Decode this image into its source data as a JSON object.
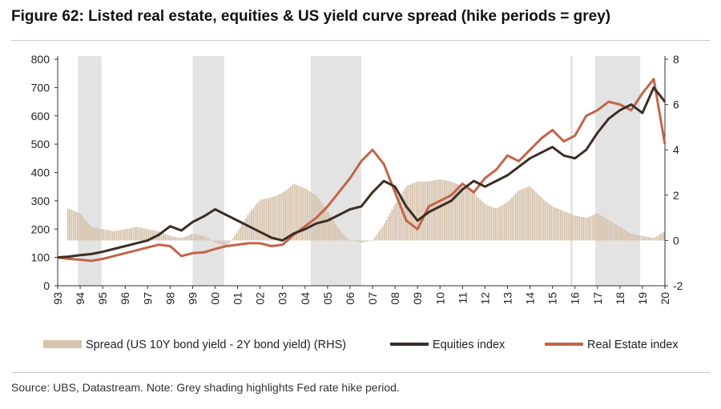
{
  "figure_title": "Figure 62: Listed real estate, equities & US yield curve spread (hike periods = grey)",
  "source_note": "Source:  UBS, Datastream. Note: Grey shading highlights Fed rate hike period.",
  "colors": {
    "spread": "#d6c3ad",
    "equities": "#3d2e26",
    "equities_light": "#d2b5a3",
    "real_estate": "#c1654a",
    "hike_shading": "#e3e3e3"
  },
  "chart_data": {
    "type": "line",
    "title": "Figure 62: Listed real estate, equities & US yield curve spread (hike periods = grey)",
    "xlabel": "",
    "ylabel": "",
    "x_tick_labels": [
      "93",
      "94",
      "95",
      "96",
      "97",
      "98",
      "99",
      "00",
      "01",
      "02",
      "03",
      "04",
      "05",
      "06",
      "07",
      "08",
      "09",
      "10",
      "11",
      "12",
      "13",
      "14",
      "15",
      "16",
      "17",
      "18",
      "19",
      "20"
    ],
    "xlim": [
      1993.0,
      2020.0
    ],
    "y_left": {
      "lim": [
        0,
        800
      ],
      "ticks": [
        0,
        100,
        200,
        300,
        400,
        500,
        600,
        700,
        800
      ]
    },
    "y_right": {
      "lim": [
        -2,
        8
      ],
      "ticks": [
        -2,
        0,
        2,
        4,
        6,
        8
      ],
      "label": "RHS"
    },
    "hike_periods": [
      [
        1993.9,
        1994.95
      ],
      [
        1999.0,
        2000.4
      ],
      [
        2004.25,
        2006.5
      ],
      [
        2015.8,
        2015.9
      ],
      [
        2016.9,
        2018.9
      ]
    ],
    "series": [
      {
        "name": "Spread (US 10Y bond yield - 2Y bond yield) (RHS)",
        "type": "bar",
        "axis": "right",
        "x": [
          1993.0,
          1993.5,
          1994.0,
          1994.5,
          1995.0,
          1995.5,
          1996.0,
          1996.5,
          1997.0,
          1997.5,
          1998.0,
          1998.5,
          1999.0,
          1999.5,
          2000.0,
          2000.5,
          2001.0,
          2001.5,
          2002.0,
          2002.5,
          2003.0,
          2003.5,
          2004.0,
          2004.5,
          2005.0,
          2005.5,
          2006.0,
          2006.5,
          2007.0,
          2007.5,
          2008.0,
          2008.5,
          2009.0,
          2009.5,
          2010.0,
          2010.5,
          2011.0,
          2011.5,
          2012.0,
          2012.5,
          2013.0,
          2013.5,
          2014.0,
          2014.5,
          2015.0,
          2015.5,
          2016.0,
          2016.5,
          2017.0,
          2017.5,
          2018.0,
          2018.5,
          2019.0,
          2019.5,
          2020.0
        ],
        "values": [
          1.5,
          1.4,
          1.2,
          0.6,
          0.5,
          0.4,
          0.5,
          0.6,
          0.5,
          0.4,
          0.2,
          0.1,
          0.3,
          0.2,
          -0.1,
          -0.3,
          0.4,
          1.2,
          1.8,
          1.9,
          2.1,
          2.5,
          2.3,
          2.0,
          1.3,
          0.5,
          0.0,
          -0.1,
          0.0,
          0.7,
          1.6,
          2.4,
          2.6,
          2.6,
          2.7,
          2.6,
          2.4,
          2.1,
          1.6,
          1.4,
          1.7,
          2.2,
          2.4,
          1.9,
          1.5,
          1.3,
          1.1,
          1.0,
          1.2,
          0.9,
          0.6,
          0.3,
          0.2,
          0.1,
          0.4
        ]
      },
      {
        "name": "Equities index",
        "type": "line",
        "axis": "left",
        "x": [
          1993.0,
          1993.5,
          1994.0,
          1994.5,
          1995.0,
          1995.5,
          1996.0,
          1996.5,
          1997.0,
          1997.5,
          1998.0,
          1998.5,
          1999.0,
          1999.5,
          2000.0,
          2000.5,
          2001.0,
          2001.5,
          2002.0,
          2002.5,
          2003.0,
          2003.5,
          2004.0,
          2004.5,
          2005.0,
          2005.5,
          2006.0,
          2006.5,
          2007.0,
          2007.5,
          2008.0,
          2008.5,
          2009.0,
          2009.5,
          2010.0,
          2010.5,
          2011.0,
          2011.5,
          2012.0,
          2012.5,
          2013.0,
          2013.5,
          2014.0,
          2014.5,
          2015.0,
          2015.5,
          2016.0,
          2016.5,
          2017.0,
          2017.5,
          2018.0,
          2018.5,
          2019.0,
          2019.5,
          2020.0
        ],
        "values": [
          100,
          103,
          108,
          112,
          120,
          130,
          140,
          150,
          160,
          180,
          210,
          195,
          225,
          245,
          270,
          250,
          230,
          210,
          190,
          170,
          160,
          185,
          200,
          220,
          230,
          250,
          270,
          280,
          330,
          370,
          350,
          280,
          230,
          260,
          280,
          300,
          340,
          370,
          350,
          370,
          390,
          420,
          450,
          470,
          490,
          460,
          450,
          480,
          540,
          590,
          620,
          640,
          610,
          700,
          650
        ]
      },
      {
        "name": "Real Estate index",
        "type": "line",
        "axis": "left",
        "x": [
          1993.0,
          1993.5,
          1994.0,
          1994.5,
          1995.0,
          1995.5,
          1996.0,
          1996.5,
          1997.0,
          1997.5,
          1998.0,
          1998.5,
          1999.0,
          1999.5,
          2000.0,
          2000.5,
          2001.0,
          2001.5,
          2002.0,
          2002.5,
          2003.0,
          2003.5,
          2004.0,
          2004.5,
          2005.0,
          2005.5,
          2006.0,
          2006.5,
          2007.0,
          2007.5,
          2008.0,
          2008.5,
          2009.0,
          2009.5,
          2010.0,
          2010.5,
          2011.0,
          2011.5,
          2012.0,
          2012.5,
          2013.0,
          2013.5,
          2014.0,
          2014.5,
          2015.0,
          2015.5,
          2016.0,
          2016.5,
          2017.0,
          2017.5,
          2018.0,
          2018.5,
          2019.0,
          2019.5,
          2020.0
        ],
        "values": [
          100,
          95,
          92,
          88,
          95,
          105,
          115,
          125,
          135,
          145,
          140,
          105,
          115,
          118,
          130,
          140,
          145,
          150,
          150,
          140,
          145,
          180,
          210,
          240,
          280,
          330,
          380,
          440,
          480,
          430,
          330,
          230,
          200,
          280,
          300,
          320,
          360,
          330,
          380,
          410,
          460,
          440,
          480,
          520,
          550,
          510,
          530,
          600,
          620,
          650,
          640,
          620,
          680,
          730,
          500
        ]
      }
    ],
    "legend": {
      "placement": "bottom",
      "entries": [
        "Spread (US 10Y bond yield - 2Y bond yield) (RHS)",
        "Equities index",
        "Real Estate index"
      ]
    }
  }
}
